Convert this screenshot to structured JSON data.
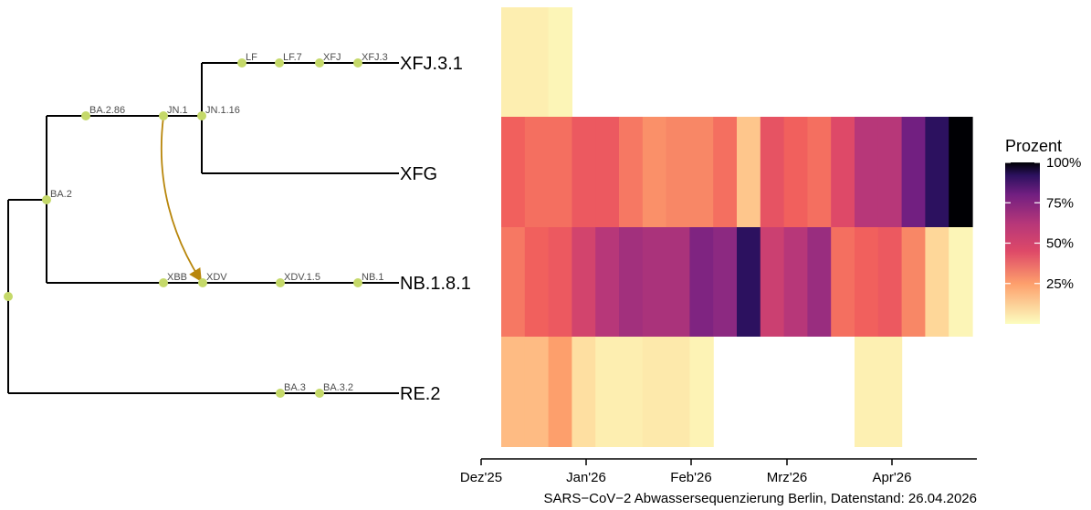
{
  "chart_data": {
    "type": "heatmap",
    "title": "",
    "caption": "SARS−CoV−2 Abwassersequenzierung Berlin, Datenstand: 26.04.2026",
    "x_tick_labels": [
      "Dez'25",
      "Jan'26",
      "Feb'26",
      "Mrz'26",
      "Apr'26"
    ],
    "weeks": 20,
    "rows": [
      "XFJ.3.1",
      "XFG",
      "NB.1.8.1",
      "RE.2"
    ],
    "values": [
      [
        6,
        6,
        3,
        null,
        null,
        null,
        null,
        null,
        null,
        null,
        null,
        null,
        null,
        null,
        null,
        null,
        null,
        null,
        null,
        null
      ],
      [
        38,
        35,
        35,
        40,
        40,
        33,
        28,
        30,
        30,
        35,
        18,
        42,
        38,
        35,
        45,
        55,
        55,
        75,
        88,
        100
      ],
      [
        33,
        38,
        40,
        48,
        55,
        60,
        58,
        58,
        70,
        65,
        88,
        50,
        55,
        62,
        35,
        38,
        40,
        30,
        15,
        3
      ],
      [
        20,
        20,
        25,
        12,
        6,
        6,
        8,
        8,
        4,
        null,
        null,
        null,
        null,
        null,
        null,
        5,
        5,
        null,
        null,
        null
      ]
    ],
    "legend": {
      "title": "Prozent",
      "ticks": [
        "100%",
        "75%",
        "50%",
        "25%"
      ],
      "tick_values": [
        100,
        75,
        50,
        25
      ]
    },
    "tree": {
      "tips": [
        "XFJ.3.1",
        "XFG",
        "NB.1.8.1",
        "RE.2"
      ],
      "node_labels": [
        "BA.2",
        "BA.2.86",
        "JN.1",
        "JN.1.16",
        "LF",
        "LF.7",
        "XFJ",
        "XFJ.3",
        "XBB",
        "XDV",
        "XDV.1.5",
        "NB.1",
        "BA.3",
        "BA.3.2"
      ],
      "recombination_arrow": {
        "from": "JN.1",
        "to": "XDV"
      }
    }
  }
}
